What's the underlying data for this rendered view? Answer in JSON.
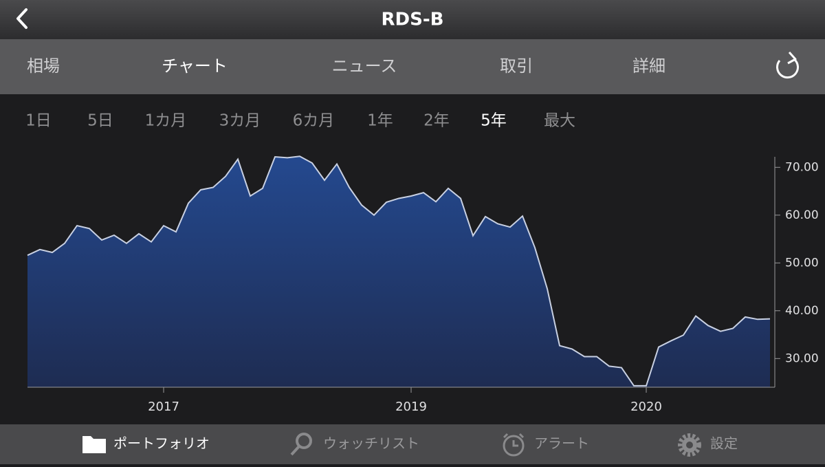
{
  "header": {
    "title": "RDS-B"
  },
  "tabs": {
    "items": [
      "相場",
      "チャート",
      "ニュース",
      "取引",
      "詳細"
    ],
    "selected": 1
  },
  "ranges": {
    "items": [
      "1日",
      "5日",
      "1カ月",
      "3カ月",
      "6カ月",
      "1年",
      "2年",
      "5年",
      "最大"
    ],
    "selected": 7
  },
  "chart_data": {
    "type": "area",
    "categories": [
      null,
      null,
      null,
      null,
      null,
      null,
      null,
      null,
      null,
      null,
      null,
      "2017",
      null,
      null,
      null,
      null,
      null,
      null,
      null,
      null,
      null,
      null,
      null,
      null,
      null,
      null,
      null,
      null,
      null,
      null,
      null,
      "2019",
      null,
      null,
      null,
      null,
      null,
      null,
      null,
      null,
      null,
      null,
      null,
      null,
      null,
      null,
      null,
      null,
      null,
      null,
      "2020",
      null,
      null,
      null,
      null,
      null,
      null,
      null,
      null,
      null,
      null
    ],
    "values": [
      51.6,
      52.8,
      52.2,
      54.1,
      57.8,
      57.2,
      54.8,
      55.8,
      54.1,
      56.1,
      54.4,
      57.8,
      56.5,
      62.5,
      65.3,
      65.8,
      68.1,
      71.7,
      64.0,
      65.6,
      72.2,
      72.0,
      72.3,
      70.9,
      67.3,
      70.7,
      65.8,
      62.1,
      60.0,
      62.7,
      63.5,
      64.0,
      64.7,
      62.8,
      65.6,
      63.5,
      55.7,
      59.7,
      58.2,
      57.5,
      59.8,
      53.2,
      44.6,
      32.7,
      32.0,
      30.4,
      30.4,
      28.4,
      28.1,
      24.3,
      24.3,
      32.4,
      33.7,
      34.9,
      38.9,
      36.9,
      35.7,
      36.3,
      38.7,
      38.2,
      38.3
    ],
    "ylim": [
      24,
      72.2
    ],
    "yticks": [
      {
        "value": 30,
        "label": "30.00"
      },
      {
        "value": 40,
        "label": "40.00"
      },
      {
        "value": 50,
        "label": "50.00"
      },
      {
        "value": 60,
        "label": "60.00"
      },
      {
        "value": 70,
        "label": "70.00"
      }
    ],
    "color": "#2a4c8c",
    "line_color": "#c9d1e3"
  },
  "bottom_tabs": {
    "items": [
      "ポートフォリオ",
      "ウォッチリスト",
      "アラート",
      "設定"
    ],
    "selected": 0
  }
}
